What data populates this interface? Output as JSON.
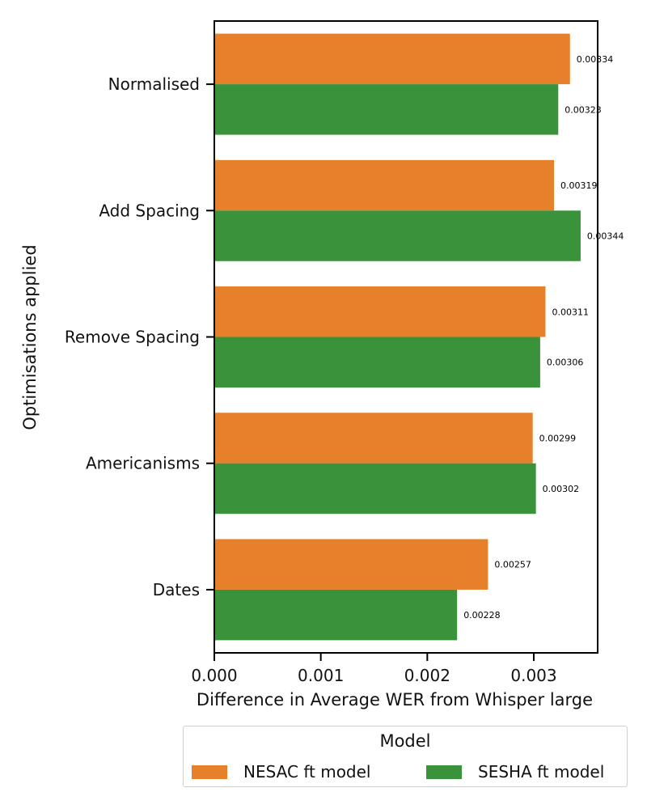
{
  "chart_data": {
    "type": "bar",
    "orientation": "horizontal",
    "title": "",
    "xlabel": "Difference in Average WER from Whisper large",
    "ylabel": "Optimisations applied",
    "xlim": [
      0,
      0.0036
    ],
    "xticks": [
      "0.000",
      "0.001",
      "0.002",
      "0.003"
    ],
    "xtick_values": [
      0,
      0.001,
      0.002,
      0.003
    ],
    "categories": [
      "Normalised",
      "Add Spacing",
      "Remove Spacing",
      "Americanisms",
      "Dates"
    ],
    "series": [
      {
        "name": "NESAC ft model",
        "color": "#e6802a",
        "values": [
          0.00334,
          0.00319,
          0.00311,
          0.00299,
          0.00257
        ],
        "labels": [
          "0.00334",
          "0.00319",
          "0.00311",
          "0.00299",
          "0.00257"
        ]
      },
      {
        "name": "SESHA ft model",
        "color": "#3a923a",
        "values": [
          0.00323,
          0.00344,
          0.00306,
          0.00302,
          0.00228
        ],
        "labels": [
          "0.00323",
          "0.00344",
          "0.00306",
          "0.00302",
          "0.00228"
        ]
      }
    ],
    "legend": {
      "title": "Model",
      "position": "bottom-center",
      "entries": [
        "NESAC ft model",
        "SESHA ft model"
      ]
    },
    "grid": false
  }
}
